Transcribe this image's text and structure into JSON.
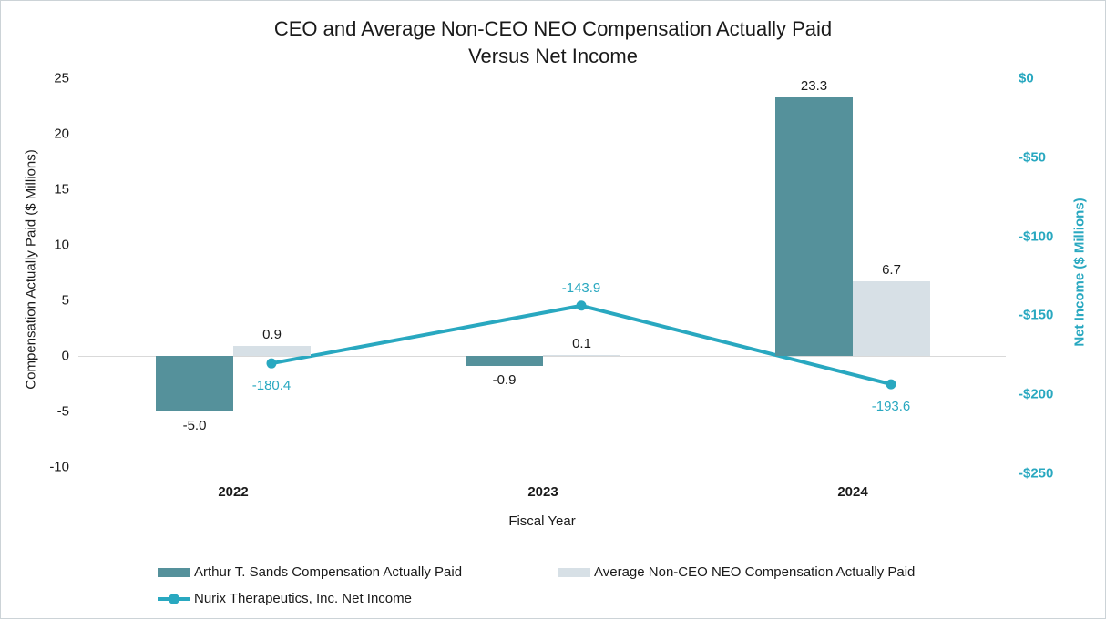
{
  "chart_data": {
    "type": "bar+line",
    "title": "CEO and Average Non-CEO NEO Compensation Actually Paid\nVersus Net Income",
    "xlabel": "Fiscal Year",
    "ylabel_left": "Compensation Actually Paid ($ Millions)",
    "ylabel_right": "Net Income ($ Millions)",
    "categories": [
      "2022",
      "2023",
      "2024"
    ],
    "series": [
      {
        "name": "Arthur T. Sands Compensation Actually Paid",
        "type": "bar",
        "axis": "left",
        "color": "#55919b",
        "values": [
          -5.0,
          -0.9,
          23.3
        ],
        "labels": [
          "-5.0",
          "-0.9",
          "23.3"
        ]
      },
      {
        "name": "Average Non-CEO NEO Compensation Actually Paid",
        "type": "bar",
        "axis": "left",
        "color": "#d7e0e6",
        "values": [
          0.9,
          0.1,
          6.7
        ],
        "labels": [
          "0.9",
          "0.1",
          "6.7"
        ]
      },
      {
        "name": "Nurix Therapeutics, Inc. Net Income",
        "type": "line",
        "axis": "right",
        "color": "#29a8c0",
        "values": [
          -180.4,
          -143.9,
          -193.6
        ],
        "labels": [
          "-180.4",
          "-143.9",
          "-193.6"
        ]
      }
    ],
    "left_axis": {
      "tick_values": [
        25,
        20,
        15,
        10,
        5,
        0,
        -5,
        -10
      ],
      "tick_labels": [
        "25",
        "20",
        "15",
        "10",
        "5",
        "0",
        "-5",
        "-10"
      ],
      "range": [
        -10,
        25
      ]
    },
    "right_axis": {
      "tick_values": [
        0,
        -50,
        -100,
        -150,
        -200,
        -250
      ],
      "tick_labels": [
        "$0",
        "-$50",
        "-$100",
        "-$150",
        "-$200",
        "-$250"
      ],
      "range": [
        -250,
        0
      ]
    },
    "grid": "zero-line-only",
    "legend_position": "bottom-left-two-rows",
    "colors": {
      "accent_teal": "#29a8c0",
      "bar_dark_teal": "#55919b",
      "bar_light_gray": "#d7e0e6",
      "zero_line": "#d9d9d9",
      "text": "#1a1a1a"
    }
  }
}
